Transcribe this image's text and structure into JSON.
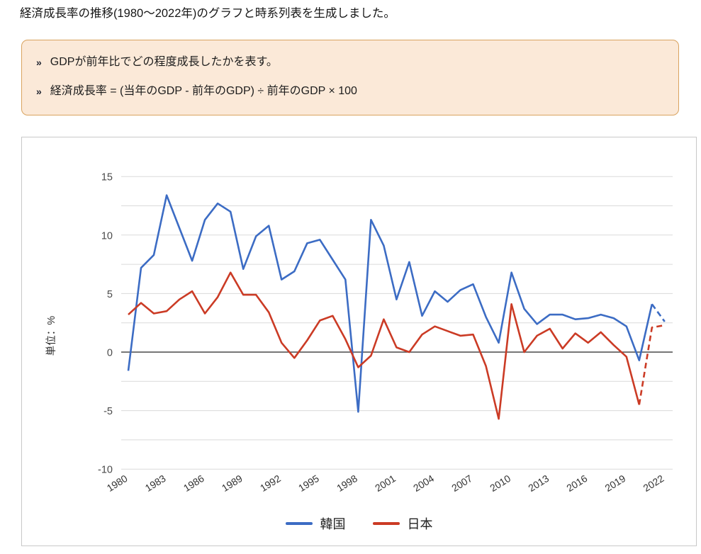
{
  "header": {
    "title": "経済成長率の推移(1980〜2022年)のグラフと時系列表を生成しました。"
  },
  "note_box": {
    "bullet_icon": "»",
    "items": [
      "GDPが前年比でどの程度成長したかを表す。",
      "経済成長率 = (当年のGDP - 前年のGDP) ÷ 前年のGDP × 100"
    ],
    "background_color": "#FBE9D8",
    "border_color": "#D9A35F"
  },
  "chart_data": {
    "type": "line",
    "title": "",
    "xlabel": "",
    "ylabel": "単位：%",
    "ylim": [
      -10,
      15
    ],
    "gridline_step": 2.5,
    "grid": true,
    "legend_position": "bottom",
    "zero_line_color": "#4a4a4a",
    "gridline_color": "#DADADA",
    "x": [
      1980,
      1981,
      1982,
      1983,
      1984,
      1985,
      1986,
      1987,
      1988,
      1989,
      1990,
      1991,
      1992,
      1993,
      1994,
      1995,
      1996,
      1997,
      1998,
      1999,
      2000,
      2001,
      2002,
      2003,
      2004,
      2005,
      2006,
      2007,
      2008,
      2009,
      2010,
      2011,
      2012,
      2013,
      2014,
      2015,
      2016,
      2017,
      2018,
      2019,
      2020,
      2021,
      2022
    ],
    "xticks": [
      1980,
      1983,
      1986,
      1989,
      1992,
      1995,
      1998,
      2001,
      2004,
      2007,
      2010,
      2013,
      2016,
      2019,
      2022
    ],
    "yticks": [
      15,
      10,
      5,
      0,
      -5,
      -10
    ],
    "series": [
      {
        "name": "韓国",
        "color": "#3C6CC4",
        "dashed_from_x": 2021,
        "values": [
          -1.6,
          7.2,
          8.3,
          13.4,
          10.6,
          7.8,
          11.3,
          12.7,
          12.0,
          7.1,
          9.9,
          10.8,
          6.2,
          6.9,
          9.3,
          9.6,
          7.9,
          6.2,
          -5.1,
          11.3,
          9.1,
          4.5,
          7.7,
          3.1,
          5.2,
          4.3,
          5.3,
          5.8,
          3.0,
          0.8,
          6.8,
          3.7,
          2.4,
          3.2,
          3.2,
          2.8,
          2.9,
          3.2,
          2.9,
          2.2,
          -0.7,
          4.1,
          2.6
        ]
      },
      {
        "name": "日本",
        "color": "#CB3B25",
        "dashed_from_x": 2020,
        "values": [
          3.2,
          4.2,
          3.3,
          3.5,
          4.5,
          5.2,
          3.3,
          4.7,
          6.8,
          4.9,
          4.9,
          3.4,
          0.8,
          -0.5,
          1.0,
          2.7,
          3.1,
          1.1,
          -1.3,
          -0.3,
          2.8,
          0.4,
          0.0,
          1.5,
          2.2,
          1.8,
          1.4,
          1.5,
          -1.2,
          -5.7,
          4.1,
          0.0,
          1.4,
          2.0,
          0.3,
          1.6,
          0.8,
          1.7,
          0.6,
          -0.4,
          -4.5,
          2.1,
          2.3
        ]
      }
    ]
  }
}
